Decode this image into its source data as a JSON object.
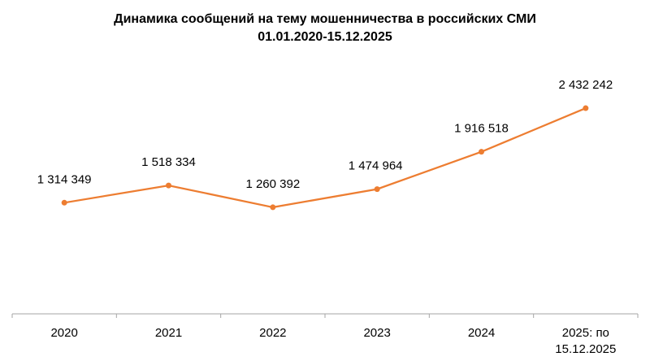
{
  "chart_data": {
    "type": "line",
    "title": "Динамика сообщений на тему мошенничества в российских СМИ",
    "subtitle": "01.01.2020-15.12.2025",
    "categories": [
      "2020",
      "2021",
      "2022",
      "2023",
      "2024",
      "2025: по 15.12.2025"
    ],
    "series": [
      {
        "values": [
          1314349,
          1518334,
          1260392,
          1474964,
          1916518,
          2432242
        ],
        "labels": [
          "1 314 349",
          "1 518 334",
          "1 260 392",
          "1 474 964",
          "1 916 518",
          "2 432 242"
        ],
        "color": "#ED7D31"
      }
    ],
    "xlabel": "",
    "ylabel": "",
    "ylim": [
      0,
      3000000
    ],
    "grid": false,
    "legend": "none"
  }
}
